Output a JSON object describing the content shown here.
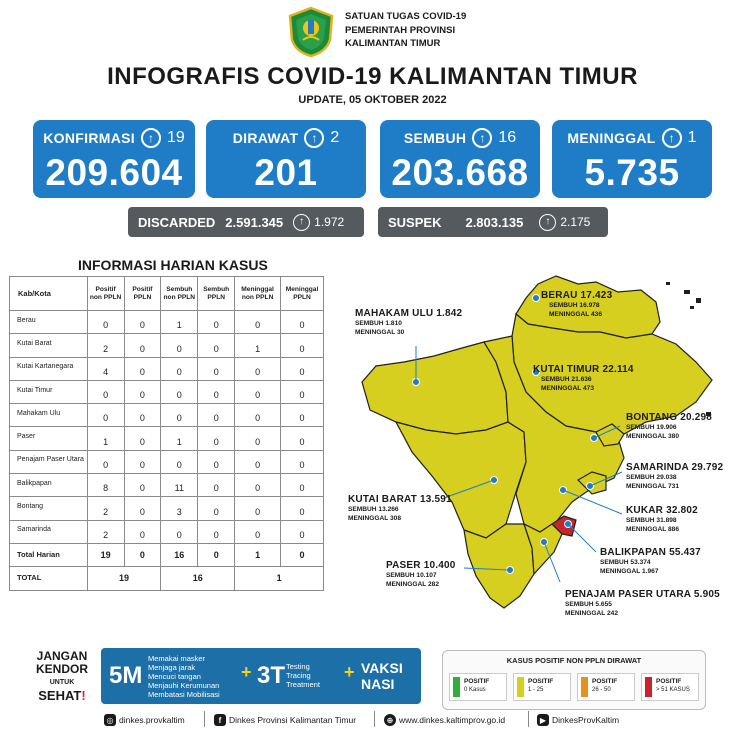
{
  "header": {
    "org_line1": "SATUAN TUGAS COVID-19",
    "org_line2": "PEMERINTAH PROVINSI",
    "org_line3": "KALIMANTAN TIMUR",
    "title": "INFOGRAFIS COVID-19 KALIMANTAN TIMUR",
    "update": "UPDATE, 05 OKTOBER 2022"
  },
  "cards": [
    {
      "label": "KONFIRMASI",
      "delta": "19",
      "value": "209.604"
    },
    {
      "label": "DIRAWAT",
      "delta": "2",
      "value": "201"
    },
    {
      "label": "SEMBUH",
      "delta": "16",
      "value": "203.668"
    },
    {
      "label": "MENINGGAL",
      "delta": "1",
      "value": "5.735"
    }
  ],
  "pills": [
    {
      "label": "DISCARDED",
      "value": "2.591.345",
      "delta": "1.972"
    },
    {
      "label": "SUSPEK",
      "value": "2.803.135",
      "delta": "2.175"
    }
  ],
  "table": {
    "title": "INFORMASI HARIAN KASUS",
    "headers": [
      "Kab/Kota",
      "Positif non PPLN",
      "Positif PPLN",
      "Sembuh non PPLN",
      "Sembuh PPLN",
      "Meninggal non PPLN",
      "Meninggal PPLN"
    ],
    "rows": [
      {
        "name": "Berau",
        "v": [
          "0",
          "0",
          "1",
          "0",
          "0",
          "0"
        ]
      },
      {
        "name": "Kutai Barat",
        "v": [
          "2",
          "0",
          "0",
          "0",
          "1",
          "0"
        ]
      },
      {
        "name": "Kutai Kartanegara",
        "v": [
          "4",
          "0",
          "0",
          "0",
          "0",
          "0"
        ]
      },
      {
        "name": "Kutai Timur",
        "v": [
          "0",
          "0",
          "0",
          "0",
          "0",
          "0"
        ]
      },
      {
        "name": "Mahakam Ulu",
        "v": [
          "0",
          "0",
          "0",
          "0",
          "0",
          "0"
        ]
      },
      {
        "name": "Paser",
        "v": [
          "1",
          "0",
          "1",
          "0",
          "0",
          "0"
        ]
      },
      {
        "name": "Penajam Paser Utara",
        "v": [
          "0",
          "0",
          "0",
          "0",
          "0",
          "0"
        ]
      },
      {
        "name": "Balikpapan",
        "v": [
          "8",
          "0",
          "11",
          "0",
          "0",
          "0"
        ]
      },
      {
        "name": "Bontang",
        "v": [
          "2",
          "0",
          "3",
          "0",
          "0",
          "0"
        ]
      },
      {
        "name": "Samarinda",
        "v": [
          "2",
          "0",
          "0",
          "0",
          "0",
          "0"
        ]
      }
    ],
    "harian": {
      "name": "Total Harian",
      "v": [
        "19",
        "0",
        "16",
        "0",
        "1",
        "0"
      ]
    },
    "total": {
      "name": "TOTAL",
      "positif": "19",
      "sembuh": "16",
      "meninggal": "1"
    }
  },
  "map": {
    "regions": [
      {
        "name": "BERAU",
        "total": "17.423",
        "sembuh": "SEMBUH 16.978",
        "meninggal": "MENINGGAL 436"
      },
      {
        "name": "MAHAKAM ULU",
        "total": "1.842",
        "sembuh": "SEMBUH 1.810",
        "meninggal": "MENINGGAL 30"
      },
      {
        "name": "KUTAI TIMUR",
        "total": "22.114",
        "sembuh": "SEMBUH 21.636",
        "meninggal": "MENINGGAL 473"
      },
      {
        "name": "BONTANG",
        "total": "20.298",
        "sembuh": "SEMBUH 19.906",
        "meninggal": "MENINGGAL 380"
      },
      {
        "name": "SAMARINDA",
        "total": "29.792",
        "sembuh": "SEMBUH 29.038",
        "meninggal": "MENINGGAL 731"
      },
      {
        "name": "KUTAI BARAT",
        "total": "13.591",
        "sembuh": "SEMBUH 13.266",
        "meninggal": "MENINGGAL 308"
      },
      {
        "name": "KUKAR",
        "total": "32.802",
        "sembuh": "SEMBUH 31.898",
        "meninggal": "MENINGGAL 886"
      },
      {
        "name": "BALIKPAPAN",
        "total": "55.437",
        "sembuh": "SEMBUH 53.374",
        "meninggal": "MENINGGAL 1.967"
      },
      {
        "name": "PASER",
        "total": "10.400",
        "sembuh": "SEMBUH 10.107",
        "meninggal": "MENINGGAL 282"
      },
      {
        "name": "PENAJAM PASER UTARA",
        "total": "5.905",
        "sembuh": "SEMBUH 5.655",
        "meninggal": "MENINGGAL 242"
      }
    ],
    "colors": {
      "yellow": "#d6cf1f",
      "red": "#c8242c",
      "border": "#1f1f1f",
      "pin": "#1f7dc8"
    }
  },
  "footer": {
    "jangan": [
      "JANGAN",
      "KENDOR",
      "UNTUK",
      "SEHAT",
      "!"
    ],
    "five_m": "5M",
    "five_m_items": [
      "Memakai masker",
      "Menjaga jarak",
      "Mencuci tangan",
      "Menjauhi Kerumunan",
      "Membatasi Mobilisasi"
    ],
    "three_t": "3T",
    "three_t_items": [
      "Testing",
      "Tracing",
      "Treatment"
    ],
    "plus": "+",
    "vaksi": [
      "VAKSI",
      "NASI"
    ],
    "legend_title": "KASUS POSITIF NON PPLN DIRAWAT",
    "legend": [
      {
        "t1": "POSITIF",
        "t2": "0 Kasus",
        "color": "#2fae3b"
      },
      {
        "t1": "POSITIF",
        "t2": "1 - 25",
        "color": "#d6cf1f"
      },
      {
        "t1": "POSITIF",
        "t2": "26 - 50",
        "color": "#e8901d"
      },
      {
        "t1": "POSITIF",
        "t2": "> 51 KASUS",
        "color": "#c8242c"
      }
    ],
    "social": {
      "instagram": "dinkes.provkaltim",
      "facebook": "Dinkes Provinsi Kalimantan Timur",
      "web": "www.dinkes.kaltimprov.go.id",
      "youtube": "DinkesProvKaltim"
    }
  },
  "accent": "#1f7dc8"
}
